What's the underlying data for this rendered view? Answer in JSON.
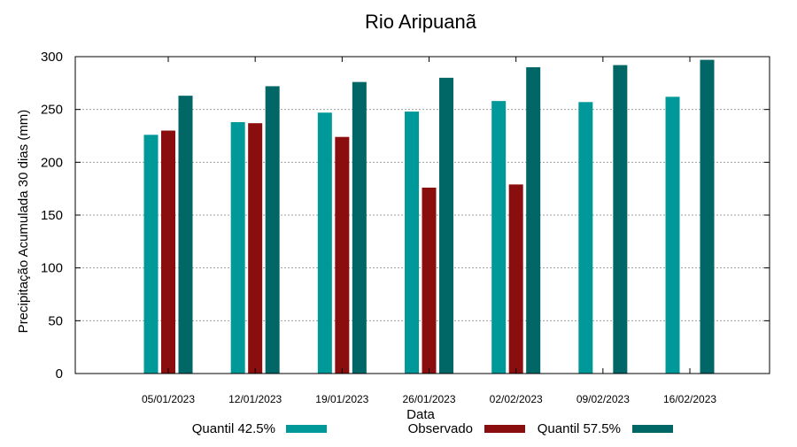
{
  "chart_data": {
    "type": "bar",
    "title": "Rio Aripuanã",
    "xlabel": "Data",
    "ylabel": "Precipitação Acumulada 30 dias (mm)",
    "ylim": [
      0,
      300
    ],
    "yticks": [
      0,
      50,
      100,
      150,
      200,
      250,
      300
    ],
    "grid": "y, dotted",
    "legend_position": "bottom",
    "categories": [
      "05/01/2023",
      "12/01/2023",
      "19/01/2023",
      "26/01/2023",
      "02/02/2023",
      "09/02/2023",
      "16/02/2023"
    ],
    "series": [
      {
        "name": "Quantil 42.5%",
        "color": "#009999",
        "values": [
          226,
          238,
          247,
          248,
          258,
          257,
          262
        ]
      },
      {
        "name": "Observado",
        "color": "#8b0e0e",
        "values": [
          230,
          237,
          224,
          176,
          179,
          null,
          null
        ]
      },
      {
        "name": "Quantil 57.5%",
        "color": "#006666",
        "values": [
          263,
          272,
          276,
          280,
          290,
          292,
          297
        ]
      }
    ]
  }
}
